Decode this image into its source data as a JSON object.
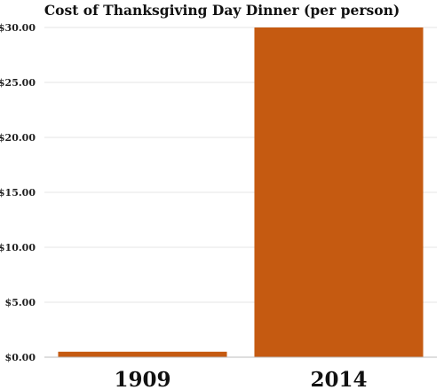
{
  "chart_data": {
    "type": "bar",
    "title": "Cost of Thanksgiving Day Dinner (per person)",
    "categories": [
      "1909",
      "2014"
    ],
    "values": [
      0.5,
      30.0
    ],
    "ylim": [
      0,
      30
    ],
    "yticks": [
      "$0.00",
      "$5.00",
      "$10.00",
      "$15.00",
      "$20.00",
      "$25.00",
      "$30.00"
    ],
    "ytick_values": [
      0,
      5,
      10,
      15,
      20,
      25,
      30
    ],
    "xlabel": "",
    "ylabel": "",
    "grid": true,
    "bar_color": "#c55a11",
    "grid_color": "#e6e6e6"
  }
}
